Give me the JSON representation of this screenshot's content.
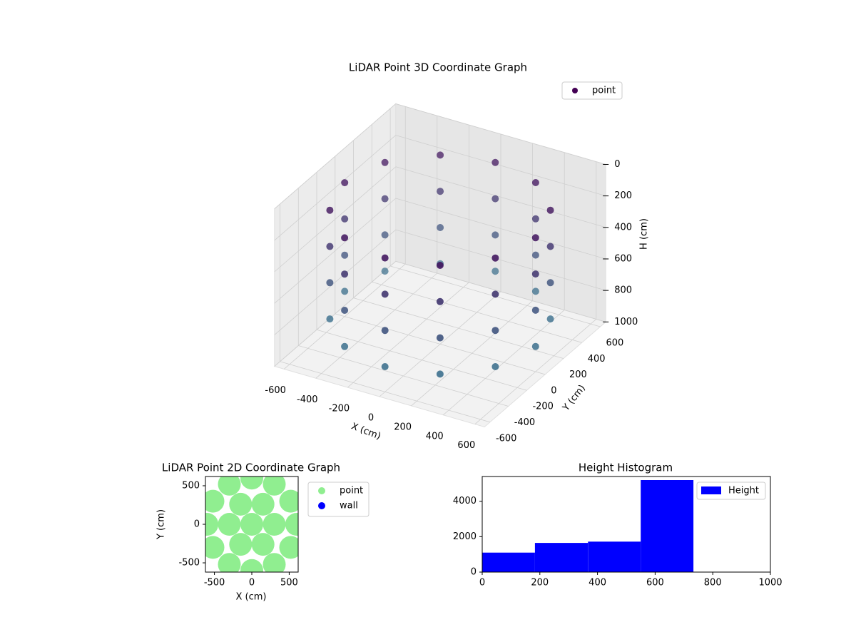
{
  "chart_data": [
    {
      "type": "scatter3d",
      "title": "LiDAR Point 3D Coordinate Graph",
      "xlabel": "X (cm)",
      "ylabel": "Y (cm)",
      "zlabel": "H (cm)",
      "xlim": [
        -660,
        660
      ],
      "ylim": [
        -660,
        660
      ],
      "zlim": [
        1000,
        0
      ],
      "xticks": [
        -600,
        -400,
        -200,
        0,
        200,
        400,
        600
      ],
      "yticks": [
        -600,
        -400,
        -200,
        0,
        200,
        400,
        600
      ],
      "zticks": [
        0,
        200,
        400,
        600,
        800,
        1000
      ],
      "colormap": [
        "#440154",
        "#2a788e"
      ],
      "legend": "upper right",
      "series": [
        {
          "name": "point",
          "x": [
            600,
            520,
            300,
            0,
            -300,
            -520,
            -600,
            -520,
            -300,
            0,
            300,
            520,
            600,
            520,
            300,
            0,
            -300,
            -520,
            -600,
            -520,
            -300,
            0,
            300,
            520,
            600,
            520,
            300,
            0,
            -300,
            -520,
            -600,
            -520,
            -300,
            0,
            300,
            520,
            600,
            520,
            300,
            0,
            -300,
            -520,
            -600,
            -520,
            -300,
            0,
            300,
            520
          ],
          "y": [
            0,
            300,
            520,
            600,
            520,
            300,
            0,
            -300,
            -520,
            -600,
            -520,
            -300,
            0,
            300,
            520,
            600,
            520,
            300,
            0,
            -300,
            -520,
            -600,
            -520,
            -300,
            0,
            300,
            520,
            600,
            520,
            300,
            0,
            -300,
            -520,
            -600,
            -520,
            -300,
            0,
            300,
            520,
            600,
            520,
            300,
            0,
            -300,
            -520,
            -600,
            -520,
            -300
          ],
          "h": [
            150,
            150,
            150,
            150,
            150,
            150,
            150,
            150,
            150,
            150,
            150,
            150,
            380,
            380,
            380,
            380,
            380,
            380,
            380,
            380,
            380,
            380,
            380,
            380,
            610,
            610,
            610,
            610,
            610,
            610,
            610,
            610,
            610,
            610,
            610,
            610,
            840,
            840,
            840,
            840,
            840,
            840,
            840,
            840,
            840,
            840,
            840,
            840
          ]
        }
      ]
    },
    {
      "type": "scatter",
      "title": "LiDAR Point 2D Coordinate Graph",
      "xlabel": "X (cm)",
      "ylabel": "Y (cm)",
      "xlim": [
        -620,
        620
      ],
      "ylim": [
        -620,
        620
      ],
      "xticks": [
        -500,
        0,
        500
      ],
      "yticks": [
        -500,
        0,
        500
      ],
      "legend": "right",
      "series": [
        {
          "name": "point",
          "color": "#90ee90",
          "x": [
            0,
            300,
            150,
            -150,
            -300,
            -150,
            150,
            600,
            520,
            300,
            0,
            -300,
            -520,
            -600,
            -520,
            -300,
            0,
            300,
            520
          ],
          "y": [
            0,
            0,
            260,
            260,
            0,
            -260,
            -260,
            0,
            300,
            520,
            600,
            520,
            300,
            0,
            -300,
            -520,
            -600,
            -520,
            -300
          ]
        },
        {
          "name": "wall",
          "color": "#0000ff",
          "x": [],
          "y": []
        }
      ]
    },
    {
      "type": "hist",
      "title": "Height Histogram",
      "xlim": [
        0,
        1000
      ],
      "ylim": [
        0,
        5400
      ],
      "xticks": [
        0,
        200,
        400,
        600,
        800,
        1000
      ],
      "yticks": [
        0,
        2000,
        4000
      ],
      "legend": "upper right",
      "series": [
        {
          "name": "Height",
          "color": "#0000ff",
          "bins": [
            0,
            183,
            367,
            550,
            733
          ],
          "values": [
            1100,
            1650,
            1720,
            5200
          ]
        }
      ]
    }
  ]
}
